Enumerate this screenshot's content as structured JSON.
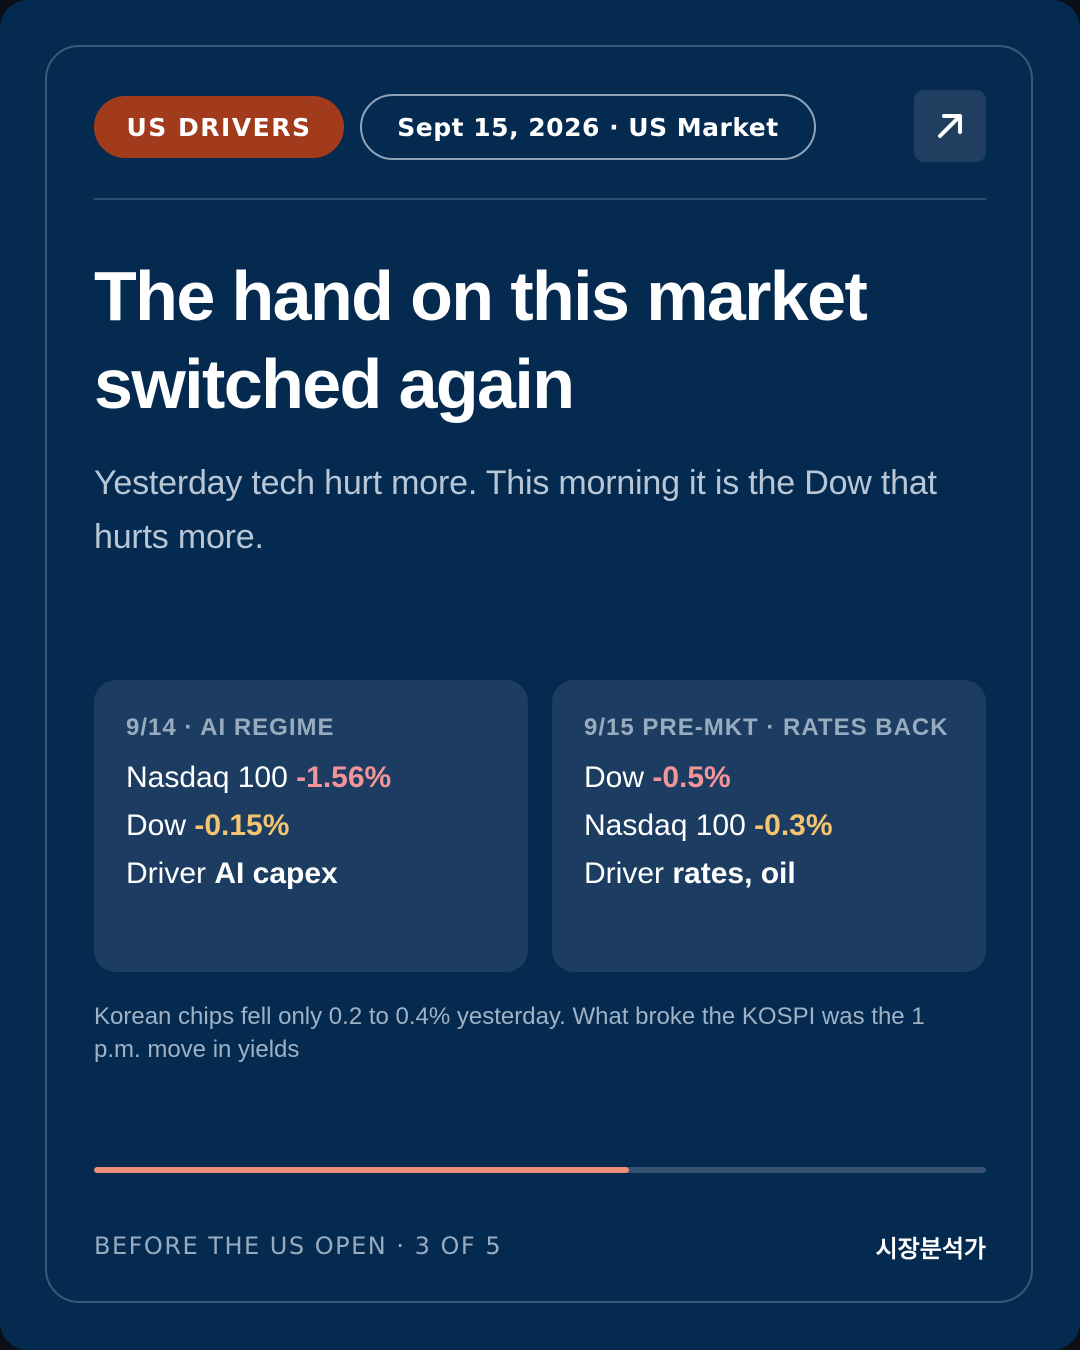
{
  "header": {
    "tag": "US DRIVERS",
    "date_market": "Sept 15, 2026 · US Market",
    "open_icon": "arrow-up-right-icon"
  },
  "headline": {
    "line1": "The hand on this market",
    "line2": "switched again"
  },
  "subhead": "Yesterday tech hurt more. This morning it is the Dow that hurts more.",
  "panels": [
    {
      "label": "9/14 · AI REGIME",
      "rows": [
        {
          "name": "Nasdaq 100",
          "value": "-1.56%"
        },
        {
          "name": "Dow",
          "value": "-0.15%"
        },
        {
          "name": "Driver",
          "value": "AI capex"
        }
      ]
    },
    {
      "label": "9/15 PRE-MKT · RATES BACK",
      "rows": [
        {
          "name": "Dow",
          "value": "-0.5%"
        },
        {
          "name": "Nasdaq 100",
          "value": "-0.3%"
        },
        {
          "name": "Driver",
          "value": "rates, oil"
        }
      ]
    }
  ],
  "note": "Korean chips fell only 0.2 to 0.4% yesterday. What broke the KOSPI was the 1 p.m. move in yields",
  "progress": {
    "fraction": 0.6
  },
  "footer": {
    "left": "BEFORE THE US OPEN · 3 OF 5",
    "right": "시장분석가"
  },
  "colors": {
    "background": "#052a50",
    "tag": "#a23a1c",
    "panel": "#1c3d61",
    "negative_strong": "#f3949a",
    "negative_mild": "#f5c470",
    "progress_fill": "#ef8e78"
  }
}
